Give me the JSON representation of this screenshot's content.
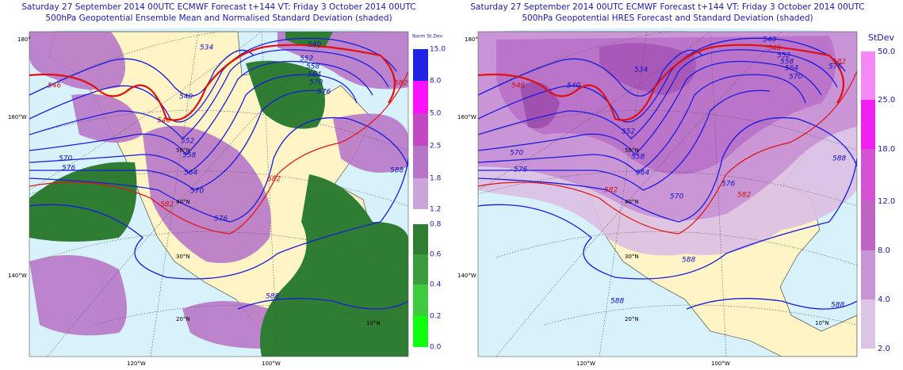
{
  "panels": [
    {
      "title_line1": "Saturday 27 September 2014 00UTC ECMWF Forecast t+144  VT: Friday 3 October 2014 00UTC",
      "title_line2": "500hPa Geopotential Ensemble Mean and Normalised Standard Deviation (shaded)",
      "legend_title": "Norm St.Dev",
      "legend_labels": [
        "15.0",
        "8.0",
        "5.0",
        "2.5",
        "1.8",
        "1.2",
        "0.8",
        "0.6",
        "0.4",
        "0.2",
        "0.0"
      ],
      "longitude_labels": [
        "180°",
        "160°W",
        "140°W",
        "120°W",
        "100°W"
      ],
      "latitude_labels": [
        "50°N",
        "40°N",
        "30°N",
        "20°N",
        "10°N"
      ],
      "contour_labels": [
        "546",
        "546",
        "540",
        "540",
        "534",
        "552",
        "558",
        "564",
        "570",
        "576",
        "582",
        "570",
        "576",
        "582",
        "552",
        "558",
        "564",
        "570",
        "576",
        "582",
        "588",
        "588"
      ]
    },
    {
      "title_line1": "Saturday 27 September 2014 00UTC ECMWF Forecast t+144  VT: Friday 3 October 2014 00UTC",
      "title_line2": "500hPa Geopotential HRES Forecast and Standard Deviation (shaded)",
      "legend_title": "StDev",
      "legend_labels": [
        "50.0",
        "25.0",
        "18.0",
        "12.0",
        "8.0",
        "4.0",
        "2.0"
      ],
      "longitude_labels": [
        "180°",
        "160°W",
        "140°W",
        "120°W",
        "100°W"
      ],
      "latitude_labels": [
        "50°N",
        "40°N",
        "30°N",
        "20°N",
        "10°N"
      ],
      "contour_labels": [
        "546",
        "540",
        "534",
        "540",
        "546",
        "552",
        "558",
        "564",
        "570",
        "576",
        "582",
        "570",
        "576",
        "582",
        "552",
        "558",
        "564",
        "570",
        "576",
        "582",
        "588",
        "588",
        "588",
        "588"
      ]
    }
  ]
}
